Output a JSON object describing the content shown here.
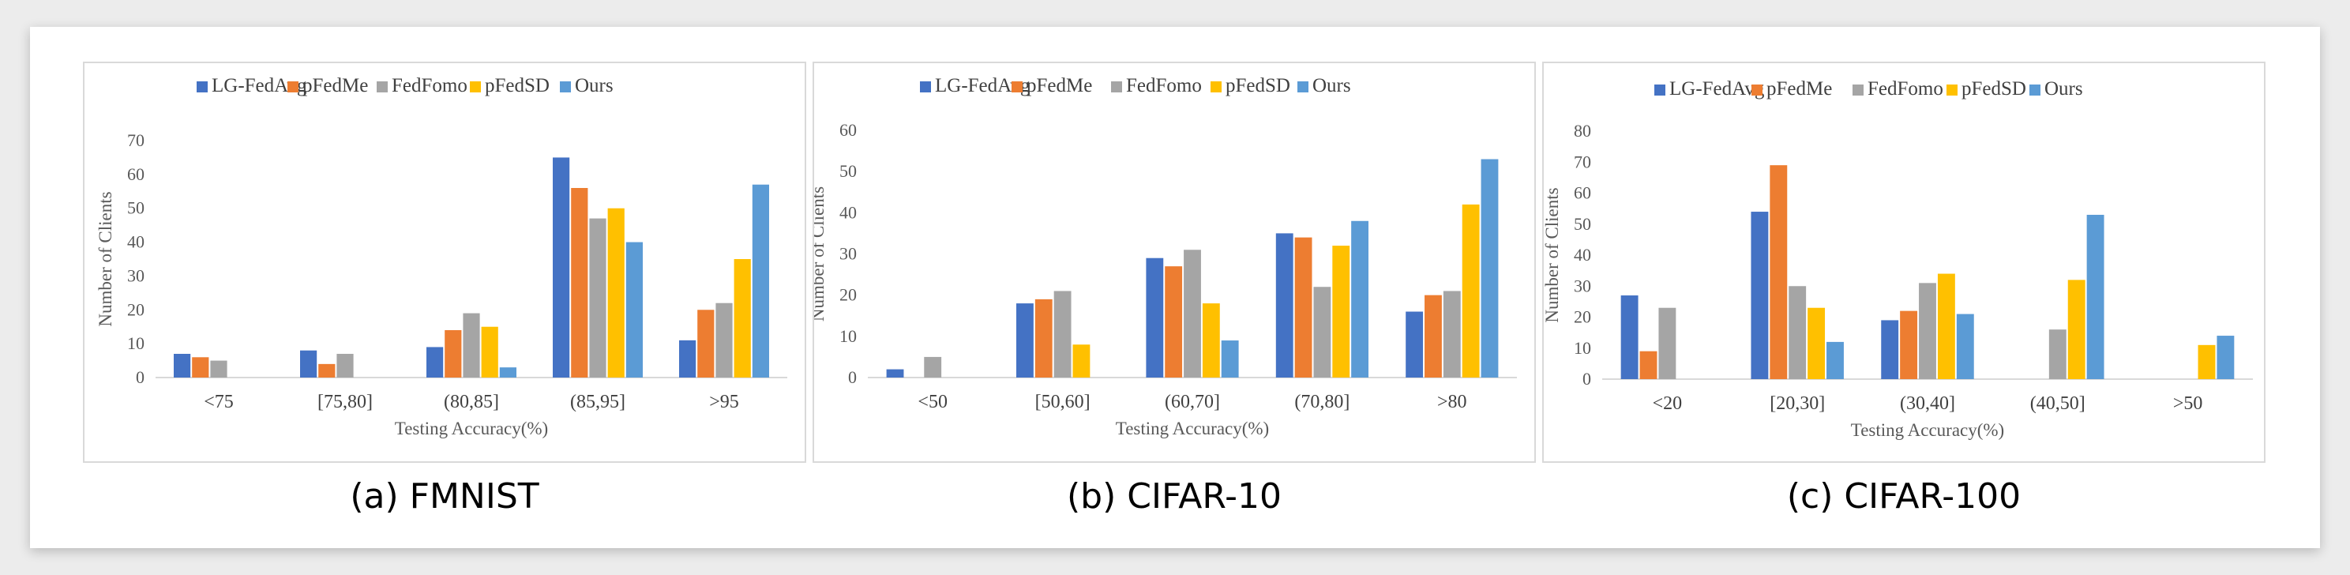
{
  "captions": [
    "(a) FMNIST",
    "(b) CIFAR-10",
    "(c) CIFAR-100"
  ],
  "chart_data": [
    {
      "type": "bar",
      "title": "",
      "xlabel": "Testing Accuracy(%)",
      "ylabel": "Number of Clients",
      "ylim": [
        0,
        70
      ],
      "yticks": [
        0,
        10,
        20,
        30,
        40,
        50,
        60,
        70
      ],
      "grid": false,
      "legend_position": "top",
      "categories": [
        "<75",
        "[75,80]",
        "(80,85]",
        "(85,95]",
        ">95"
      ],
      "series": [
        {
          "name": "LG-FedAvg",
          "color": "#4472C4",
          "values": [
            7,
            8,
            9,
            65,
            11
          ]
        },
        {
          "name": "pFedMe",
          "color": "#ED7D31",
          "values": [
            6,
            4,
            14,
            56,
            20
          ]
        },
        {
          "name": "FedFomo",
          "color": "#A5A5A5",
          "values": [
            5,
            7,
            19,
            47,
            22
          ]
        },
        {
          "name": "pFedSD",
          "color": "#FFC000",
          "values": [
            0,
            0,
            15,
            50,
            35
          ]
        },
        {
          "name": "Ours",
          "color": "#5B9BD5",
          "values": [
            0,
            0,
            3,
            40,
            57
          ]
        }
      ]
    },
    {
      "type": "bar",
      "title": "",
      "xlabel": "Testing Accuracy(%)",
      "ylabel": "Number of Clients",
      "ylim": [
        0,
        60
      ],
      "yticks": [
        0,
        10,
        20,
        30,
        40,
        50,
        60
      ],
      "grid": false,
      "legend_position": "top",
      "categories": [
        "<50",
        "[50,60]",
        "(60,70]",
        "(70,80]",
        ">80"
      ],
      "series": [
        {
          "name": "LG-FedAvg",
          "color": "#4472C4",
          "values": [
            2,
            18,
            29,
            35,
            16
          ]
        },
        {
          "name": "pFedMe",
          "color": "#ED7D31",
          "values": [
            0,
            19,
            27,
            34,
            20
          ]
        },
        {
          "name": "FedFomo",
          "color": "#A5A5A5",
          "values": [
            5,
            21,
            31,
            22,
            21
          ]
        },
        {
          "name": "pFedSD",
          "color": "#FFC000",
          "values": [
            0,
            8,
            18,
            32,
            42
          ]
        },
        {
          "name": "Ours",
          "color": "#5B9BD5",
          "values": [
            0,
            0,
            9,
            38,
            53
          ]
        }
      ]
    },
    {
      "type": "bar",
      "title": "",
      "xlabel": "Testing Accuracy(%)",
      "ylabel": "Number of Clients",
      "ylim": [
        0,
        80
      ],
      "yticks": [
        0,
        10,
        20,
        30,
        40,
        50,
        60,
        70,
        80
      ],
      "grid": false,
      "legend_position": "top",
      "categories": [
        "<20",
        "[20,30]",
        "(30,40]",
        "(40,50]",
        ">50"
      ],
      "series": [
        {
          "name": "LG-FedAvg",
          "color": "#4472C4",
          "values": [
            27,
            54,
            19,
            0,
            0
          ]
        },
        {
          "name": "pFedMe",
          "color": "#ED7D31",
          "values": [
            9,
            69,
            22,
            0,
            0
          ]
        },
        {
          "name": "FedFomo",
          "color": "#A5A5A5",
          "values": [
            23,
            30,
            31,
            16,
            0
          ]
        },
        {
          "name": "pFedSD",
          "color": "#FFC000",
          "values": [
            0,
            23,
            34,
            32,
            11
          ]
        },
        {
          "name": "Ours",
          "color": "#5B9BD5",
          "values": [
            0,
            12,
            21,
            53,
            14
          ]
        }
      ]
    }
  ]
}
